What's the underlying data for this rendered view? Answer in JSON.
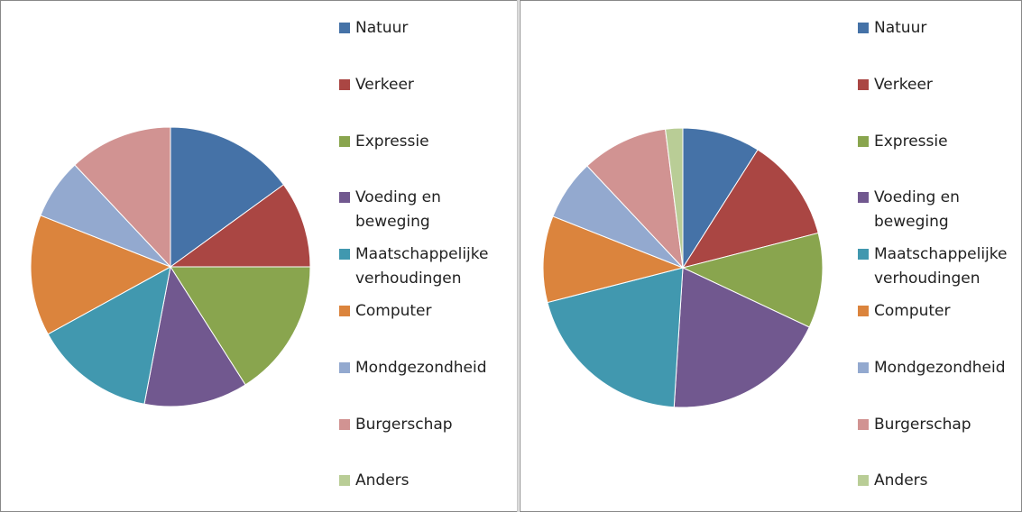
{
  "chart_data": [
    {
      "type": "pie",
      "categories": [
        "Natuur",
        "Verkeer",
        "Expressie",
        "Voeding en beweging",
        "Maatschappelijke verhoudingen",
        "Computer",
        "Mondgezondheid",
        "Burgerschap",
        "Anders"
      ],
      "values": [
        15,
        10,
        16,
        12,
        14,
        14,
        7,
        12,
        0
      ],
      "colors": [
        "#4572A7",
        "#AA4643",
        "#89A54E",
        "#71588F",
        "#4198AF",
        "#DB843D",
        "#93A9CF",
        "#D19392",
        "#B9CD96"
      ]
    },
    {
      "type": "pie",
      "categories": [
        "Natuur",
        "Verkeer",
        "Expressie",
        "Voeding en beweging",
        "Maatschappelijke verhoudingen",
        "Computer",
        "Mondgezondheid",
        "Burgerschap",
        "Anders"
      ],
      "values": [
        9,
        12,
        11,
        19,
        20,
        10,
        7,
        10,
        2
      ],
      "colors": [
        "#4572A7",
        "#AA4643",
        "#89A54E",
        "#71588F",
        "#4198AF",
        "#DB843D",
        "#93A9CF",
        "#D19392",
        "#B9CD96"
      ]
    }
  ]
}
